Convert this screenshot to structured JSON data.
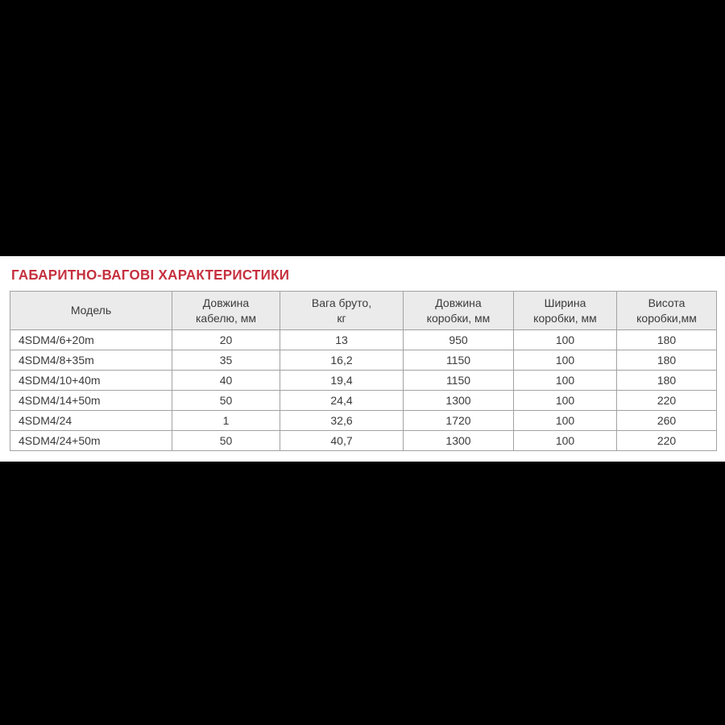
{
  "page": {
    "title": "ГАБАРИТНО-ВАГОВІ ХАРАКТЕРИСТИКИ"
  },
  "colors": {
    "title_red": "#c5303e",
    "header_bg": "#ebebeb",
    "table_border": "#a2a2a2",
    "text": "#3b3b3b",
    "letterbox": "#000000",
    "content_bg": "#ffffff"
  },
  "table": {
    "headers": [
      "Модель",
      "Довжина\nкабелю, мм",
      "Вага бруто,\nкг",
      "Довжина\nкоробки, мм",
      "Ширина\nкоробки, мм",
      "Висота\nкоробки,мм"
    ],
    "rows": [
      [
        "4SDM4/6+20m",
        "20",
        "13",
        "950",
        "100",
        "180"
      ],
      [
        "4SDM4/8+35m",
        "35",
        "16,2",
        "1150",
        "100",
        "180"
      ],
      [
        "4SDM4/10+40m",
        "40",
        "19,4",
        "1150",
        "100",
        "180"
      ],
      [
        "4SDM4/14+50m",
        "50",
        "24,4",
        "1300",
        "100",
        "220"
      ],
      [
        "4SDM4/24",
        "1",
        "32,6",
        "1720",
        "100",
        "260"
      ],
      [
        "4SDM4/24+50m",
        "50",
        "40,7",
        "1300",
        "100",
        "220"
      ]
    ]
  }
}
